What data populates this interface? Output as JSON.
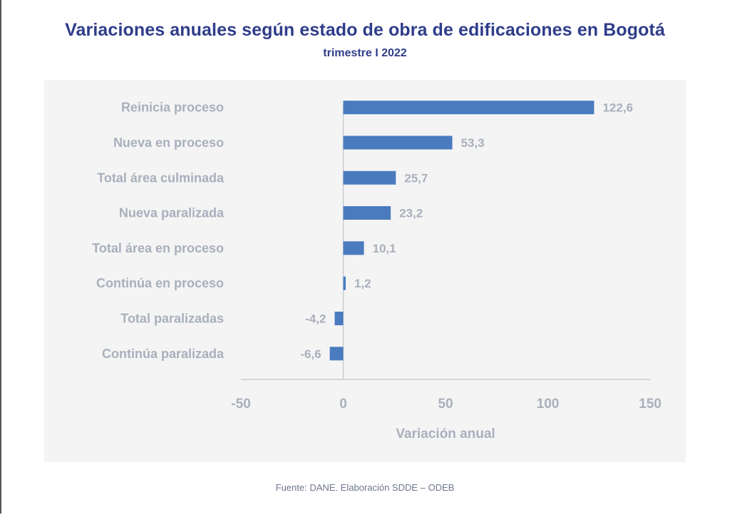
{
  "chart_data": {
    "type": "bar",
    "orientation": "horizontal",
    "title": "Variaciones anuales según estado de obra de edificaciones en Bogotá",
    "subtitle": "trimestre I 2022",
    "categories": [
      "Reinicia proceso",
      "Nueva en proceso",
      "Total área culminada",
      "Nueva paralizada",
      "Total área en proceso",
      "Continúa en proceso",
      "Total paralizadas",
      "Continúa paralizada"
    ],
    "values": [
      122.6,
      53.3,
      25.7,
      23.2,
      10.1,
      1.2,
      -4.2,
      -6.6
    ],
    "value_labels": [
      "122,6",
      "53,3",
      "25,7",
      "23,2",
      "10,1",
      "1,2",
      "-4,2",
      "-6,6"
    ],
    "xlabel": "Variación anual",
    "ylabel": "",
    "xlim": [
      -50,
      150
    ],
    "xticks": [
      -50,
      0,
      50,
      100,
      150
    ],
    "xtick_labels": [
      "-50",
      "0",
      "50",
      "100",
      "150"
    ],
    "grid": false,
    "legend": "none",
    "bar_color": "#4a7bbf"
  },
  "source": "Fuente: DANE. Elaboración SDDE – ODEB"
}
